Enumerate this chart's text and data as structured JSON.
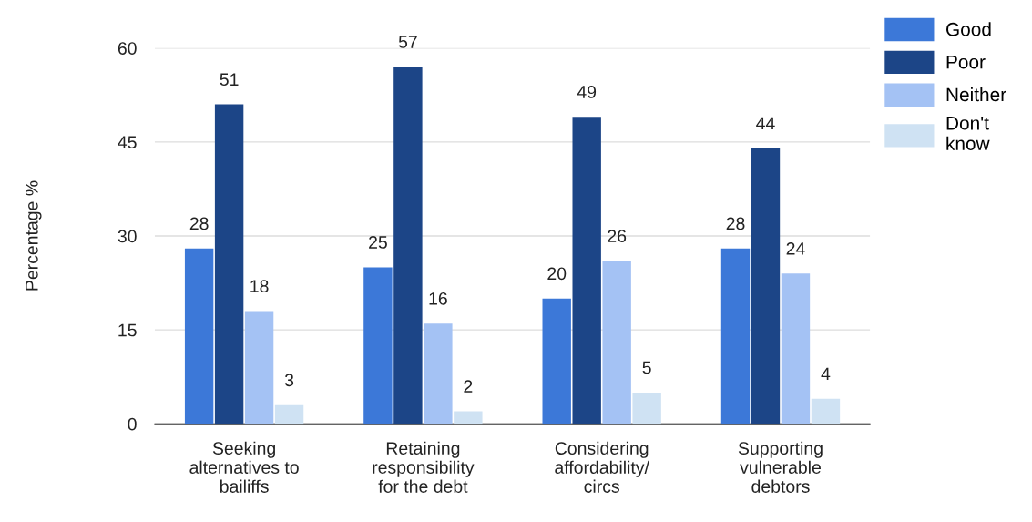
{
  "chart_data": {
    "type": "bar",
    "ylabel": "Percentage %",
    "categories": [
      "Seeking\nalternatives to\nbailiffs",
      "Retaining\nresponsibility\nfor the debt",
      "Considering\naffordability/\ncircs",
      "Supporting\nvulnerable\ndebtors"
    ],
    "series": [
      {
        "name": "Good",
        "color": "#3c78d8",
        "values": [
          28,
          25,
          20,
          28
        ]
      },
      {
        "name": "Poor",
        "color": "#1c4587",
        "values": [
          51,
          57,
          49,
          44
        ]
      },
      {
        "name": "Neither",
        "color": "#a4c2f4",
        "values": [
          18,
          16,
          26,
          24
        ]
      },
      {
        "name": "Don't know",
        "color": "#cfe2f3",
        "values": [
          3,
          2,
          5,
          4
        ]
      }
    ],
    "ylim": [
      0,
      60
    ],
    "yticks": [
      0,
      15,
      30,
      45,
      60
    ],
    "grid": "y",
    "legend": "top right",
    "data_labels": true
  }
}
